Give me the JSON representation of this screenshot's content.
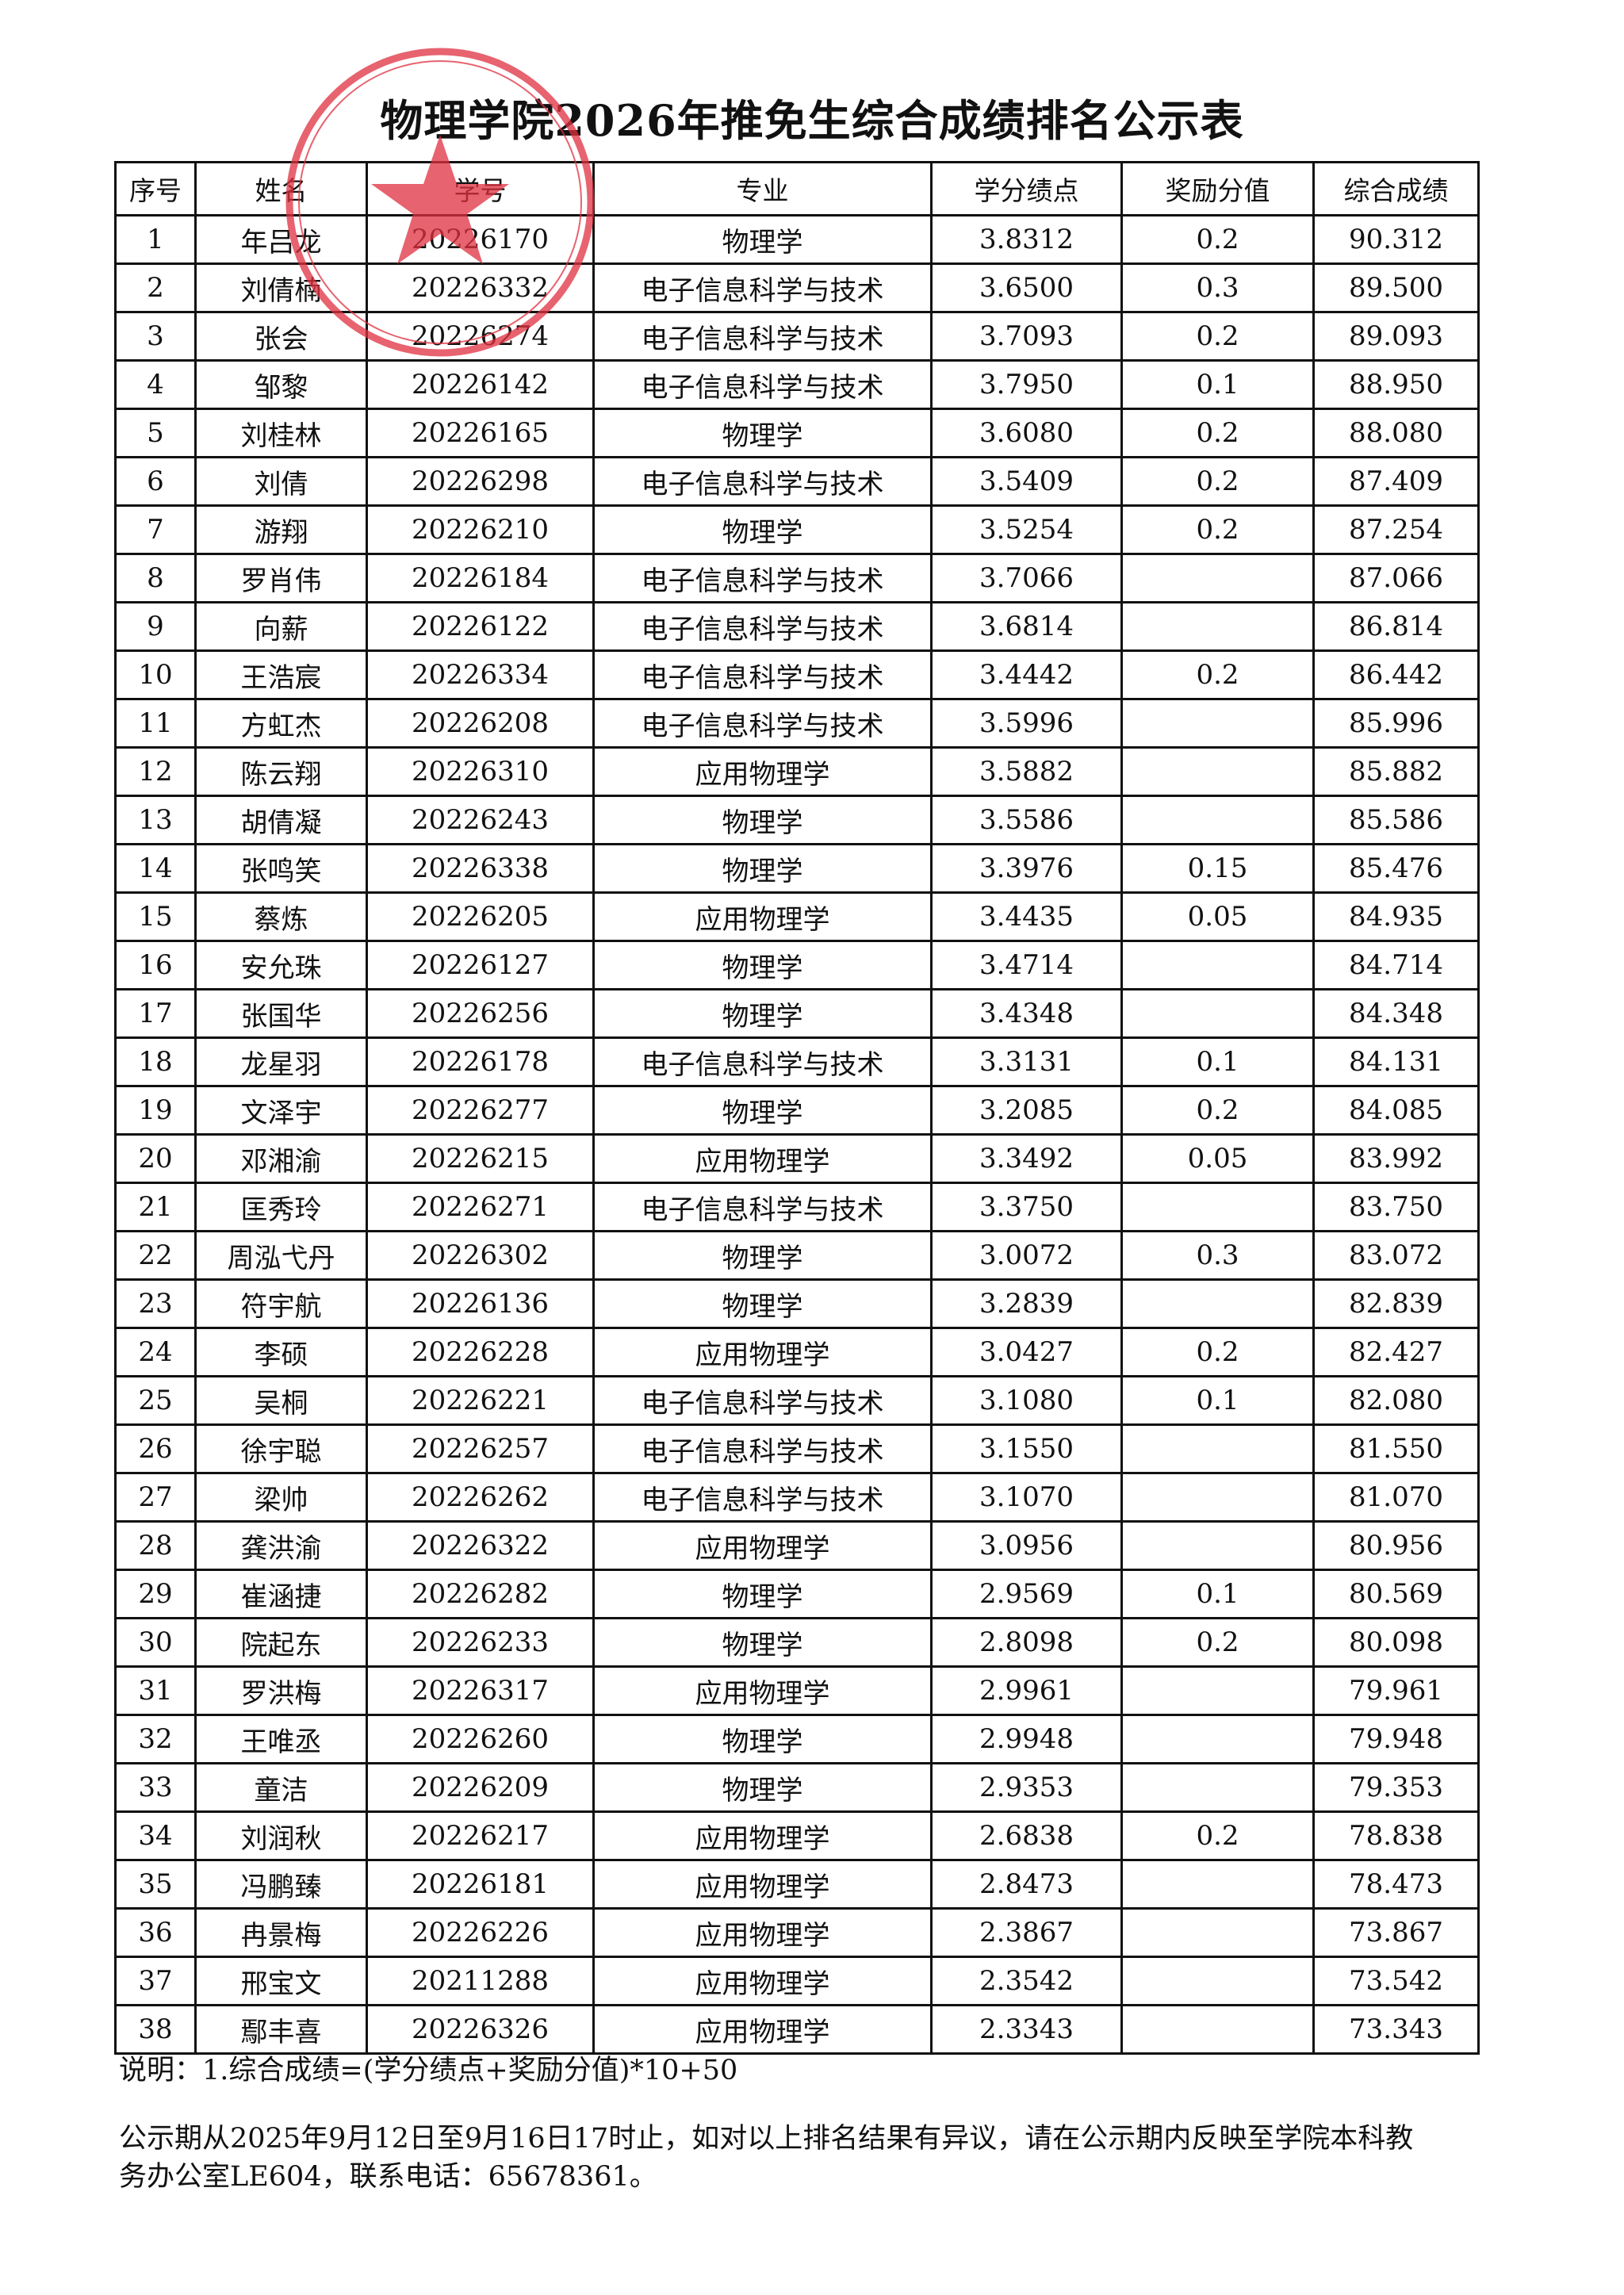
{
  "title": "物理学院2026年推免生综合成绩排名公示表",
  "table": {
    "headers": [
      "序号",
      "姓名",
      "学号",
      "专业",
      "学分绩点",
      "奖励分值",
      "综合成绩"
    ],
    "rows": [
      [
        "1",
        "年吕龙",
        "20226170",
        "物理学",
        "3.8312",
        "0.2",
        "90.312"
      ],
      [
        "2",
        "刘倩楠",
        "20226332",
        "电子信息科学与技术",
        "3.6500",
        "0.3",
        "89.500"
      ],
      [
        "3",
        "张会",
        "20226274",
        "电子信息科学与技术",
        "3.7093",
        "0.2",
        "89.093"
      ],
      [
        "4",
        "邹黎",
        "20226142",
        "电子信息科学与技术",
        "3.7950",
        "0.1",
        "88.950"
      ],
      [
        "5",
        "刘桂林",
        "20226165",
        "物理学",
        "3.6080",
        "0.2",
        "88.080"
      ],
      [
        "6",
        "刘倩",
        "20226298",
        "电子信息科学与技术",
        "3.5409",
        "0.2",
        "87.409"
      ],
      [
        "7",
        "游翔",
        "20226210",
        "物理学",
        "3.5254",
        "0.2",
        "87.254"
      ],
      [
        "8",
        "罗肖伟",
        "20226184",
        "电子信息科学与技术",
        "3.7066",
        "",
        "87.066"
      ],
      [
        "9",
        "向薪",
        "20226122",
        "电子信息科学与技术",
        "3.6814",
        "",
        "86.814"
      ],
      [
        "10",
        "王浩宸",
        "20226334",
        "电子信息科学与技术",
        "3.4442",
        "0.2",
        "86.442"
      ],
      [
        "11",
        "方虹杰",
        "20226208",
        "电子信息科学与技术",
        "3.5996",
        "",
        "85.996"
      ],
      [
        "12",
        "陈云翔",
        "20226310",
        "应用物理学",
        "3.5882",
        "",
        "85.882"
      ],
      [
        "13",
        "胡倩凝",
        "20226243",
        "物理学",
        "3.5586",
        "",
        "85.586"
      ],
      [
        "14",
        "张鸣笑",
        "20226338",
        "物理学",
        "3.3976",
        "0.15",
        "85.476"
      ],
      [
        "15",
        "蔡炼",
        "20226205",
        "应用物理学",
        "3.4435",
        "0.05",
        "84.935"
      ],
      [
        "16",
        "安允珠",
        "20226127",
        "物理学",
        "3.4714",
        "",
        "84.714"
      ],
      [
        "17",
        "张国华",
        "20226256",
        "物理学",
        "3.4348",
        "",
        "84.348"
      ],
      [
        "18",
        "龙星羽",
        "20226178",
        "电子信息科学与技术",
        "3.3131",
        "0.1",
        "84.131"
      ],
      [
        "19",
        "文泽宇",
        "20226277",
        "物理学",
        "3.2085",
        "0.2",
        "84.085"
      ],
      [
        "20",
        "邓湘渝",
        "20226215",
        "应用物理学",
        "3.3492",
        "0.05",
        "83.992"
      ],
      [
        "21",
        "匡秀玲",
        "20226271",
        "电子信息科学与技术",
        "3.3750",
        "",
        "83.750"
      ],
      [
        "22",
        "周泓弋丹",
        "20226302",
        "物理学",
        "3.0072",
        "0.3",
        "83.072"
      ],
      [
        "23",
        "符宇航",
        "20226136",
        "物理学",
        "3.2839",
        "",
        "82.839"
      ],
      [
        "24",
        "李硕",
        "20226228",
        "应用物理学",
        "3.0427",
        "0.2",
        "82.427"
      ],
      [
        "25",
        "吴桐",
        "20226221",
        "电子信息科学与技术",
        "3.1080",
        "0.1",
        "82.080"
      ],
      [
        "26",
        "徐宇聪",
        "20226257",
        "电子信息科学与技术",
        "3.1550",
        "",
        "81.550"
      ],
      [
        "27",
        "梁帅",
        "20226262",
        "电子信息科学与技术",
        "3.1070",
        "",
        "81.070"
      ],
      [
        "28",
        "龚洪渝",
        "20226322",
        "应用物理学",
        "3.0956",
        "",
        "80.956"
      ],
      [
        "29",
        "崔涵捷",
        "20226282",
        "物理学",
        "2.9569",
        "0.1",
        "80.569"
      ],
      [
        "30",
        "院起东",
        "20226233",
        "物理学",
        "2.8098",
        "0.2",
        "80.098"
      ],
      [
        "31",
        "罗洪梅",
        "20226317",
        "应用物理学",
        "2.9961",
        "",
        "79.961"
      ],
      [
        "32",
        "王唯丞",
        "20226260",
        "物理学",
        "2.9948",
        "",
        "79.948"
      ],
      [
        "33",
        "童洁",
        "20226209",
        "物理学",
        "2.9353",
        "",
        "79.353"
      ],
      [
        "34",
        "刘润秋",
        "20226217",
        "应用物理学",
        "2.6838",
        "0.2",
        "78.838"
      ],
      [
        "35",
        "冯鹏臻",
        "20226181",
        "应用物理学",
        "2.8473",
        "",
        "78.473"
      ],
      [
        "36",
        "冉景梅",
        "20226226",
        "应用物理学",
        "2.3867",
        "",
        "73.867"
      ],
      [
        "37",
        "邢宝文",
        "20211288",
        "应用物理学",
        "2.3542",
        "",
        "73.542"
      ],
      [
        "38",
        "鄢丰喜",
        "20226326",
        "应用物理学",
        "2.3343",
        "",
        "73.343"
      ]
    ]
  },
  "notes": {
    "formula": "说明：1.综合成绩=(学分绩点+奖励分值)*10+50",
    "period_line1": "公示期从2025年9月12日至9月16日17时止，如对以上排名结果有异议，请在公示期内反映至学院本科教",
    "period_line2": "务办公室LE604，联系电话：65678361。"
  },
  "stamp": {
    "color": "#e0303f"
  }
}
